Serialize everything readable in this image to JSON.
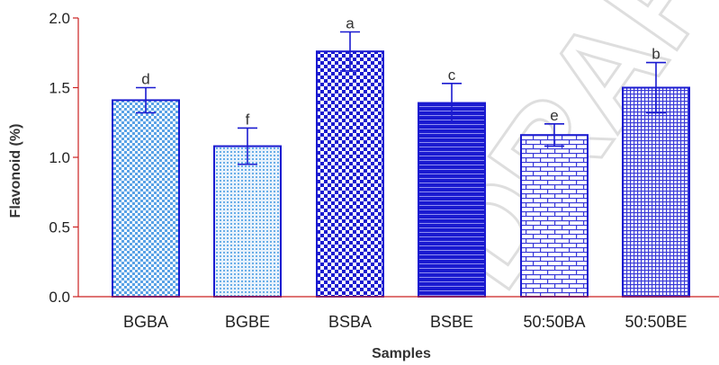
{
  "chart_data": {
    "type": "bar",
    "title": "",
    "xlabel": "Samples",
    "ylabel": "Flavonoid (%)",
    "ylim": [
      0,
      2.0
    ],
    "yticks": [
      "0.0",
      "0.5",
      "1.0",
      "1.5",
      "2.0"
    ],
    "grid": false,
    "categories": [
      "BGBA",
      "BGBE",
      "BSBA",
      "BSBE",
      "50:50BA",
      "50:50BE"
    ],
    "values": [
      1.41,
      1.08,
      1.76,
      1.39,
      1.16,
      1.5
    ],
    "errors": [
      0.09,
      0.13,
      0.14,
      0.14,
      0.08,
      0.18
    ],
    "significance": [
      "d",
      "f",
      "a",
      "c",
      "e",
      "b"
    ],
    "colors": {
      "axis": "#cc2222",
      "bar_border": "#1a1ad0",
      "dark": "#1a1ad0",
      "light": "#6aaee8"
    },
    "patterns": [
      "checker-light-small",
      "dots-light",
      "checker-dark",
      "horizontal-lines",
      "bricks",
      "crosshatch-fine"
    ]
  }
}
